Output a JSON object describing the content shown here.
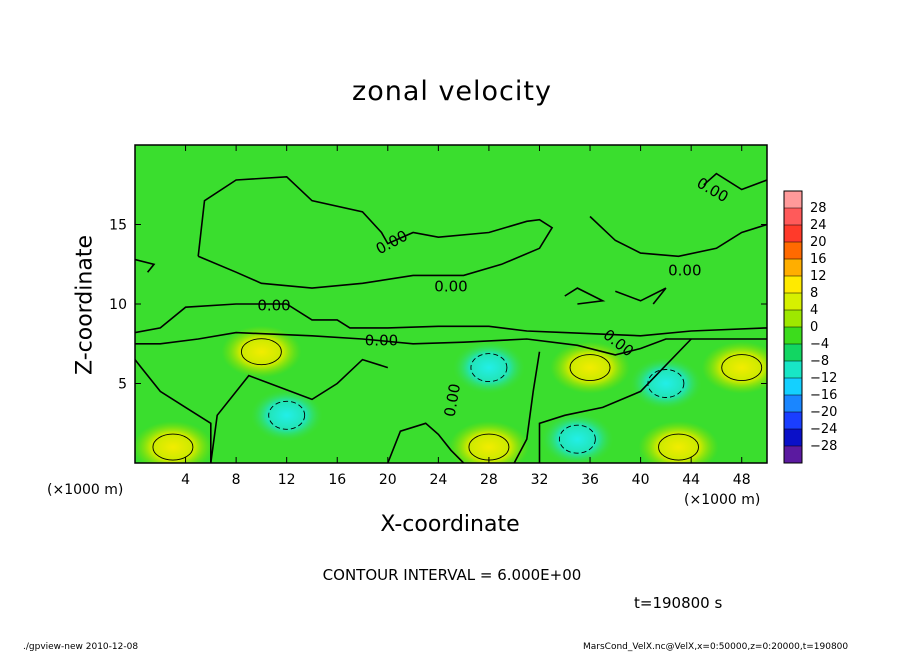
{
  "chart_data": {
    "type": "heatmap",
    "title": "zonal velocity",
    "xlabel": "X-coordinate",
    "ylabel": "Z-coordinate",
    "x_unit_label": "(×1000 m)",
    "xlim": [
      0,
      50
    ],
    "ylim": [
      0,
      20
    ],
    "x_ticks": [
      4,
      8,
      12,
      16,
      20,
      24,
      28,
      32,
      36,
      40,
      44,
      48
    ],
    "y_ticks": [
      5,
      10,
      15
    ],
    "colorbar": {
      "levels": [
        28,
        24,
        20,
        16,
        12,
        8,
        4,
        0,
        -4,
        -8,
        -12,
        -16,
        -20,
        -24,
        -28
      ],
      "colors": [
        "#ff9a9a",
        "#ff5a5a",
        "#ff3a2a",
        "#ff6a00",
        "#ffae00",
        "#ffea00",
        "#d6f000",
        "#9ee800",
        "#3cdc1c",
        "#12d662",
        "#18e6c6",
        "#14d0ff",
        "#1a86ff",
        "#1a3eff",
        "#0a10c8",
        "#5b1aa0"
      ]
    },
    "contour_labels": [
      "0.00",
      "0.00",
      "0.00",
      "0.00",
      "0.00",
      "0.00",
      "0.00",
      "0.00"
    ],
    "contour_interval": "CONTOUR INTERVAL = 6.000E+00",
    "time": "t=190800 s",
    "field_ranges": {
      "positive_maxima_m_s": [
        {
          "x": 10,
          "z": 7,
          "value": 6
        },
        {
          "x": 36,
          "z": 6,
          "value": 6
        },
        {
          "x": 48,
          "z": 6,
          "value": 6
        },
        {
          "x": 3,
          "z": 1,
          "value": 7
        },
        {
          "x": 28,
          "z": 1,
          "value": 7
        },
        {
          "x": 43,
          "z": 1,
          "value": 7
        }
      ],
      "negative_minima_m_s": [
        {
          "x": 28,
          "z": 6,
          "value": -7
        },
        {
          "x": 42,
          "z": 5,
          "value": -7
        },
        {
          "x": 12,
          "z": 3,
          "value": -5
        },
        {
          "x": 35,
          "z": 1.5,
          "value": -5
        }
      ]
    }
  },
  "footer": {
    "left": "./gpview-new  2010-12-08",
    "right": "MarsCond_VelX.nc@VelX,x=0:50000,z=0:20000,t=190800"
  }
}
